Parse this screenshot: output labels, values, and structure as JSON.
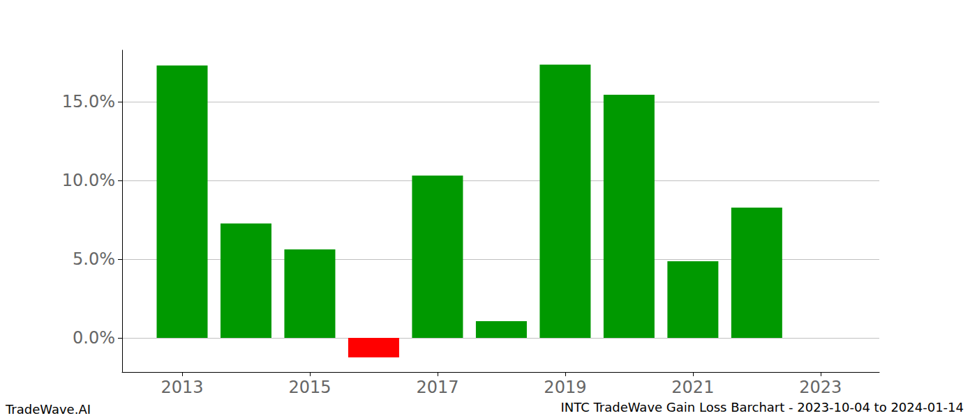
{
  "chart_data": {
    "type": "bar",
    "title": "INTC TradeWave Gain Loss Barchart - 2023-10-04 to 2024-01-14",
    "annotations": [
      "TradeWave.AI"
    ],
    "x": [
      2013,
      2014,
      2015,
      2016,
      2017,
      2018,
      2019,
      2020,
      2021,
      2022
    ],
    "values": [
      17.3,
      7.26,
      5.62,
      -1.24,
      10.31,
      1.06,
      17.35,
      15.44,
      4.87,
      8.27
    ],
    "colors": [
      "#009900",
      "#009900",
      "#009900",
      "#ff0000",
      "#009900",
      "#009900",
      "#009900",
      "#009900",
      "#009900",
      "#009900"
    ],
    "xlim": [
      2012.06,
      2023.92
    ],
    "xticks": [
      2013,
      2015,
      2017,
      2019,
      2021,
      2023
    ],
    "ylim": [
      -2.17,
      18.27
    ],
    "yticks": [
      {
        "value": 0,
        "label": "0.0%"
      },
      {
        "value": 5,
        "label": "5.0%"
      },
      {
        "value": 10,
        "label": "10.0%"
      },
      {
        "value": 15,
        "label": "15.0%"
      }
    ],
    "grid": true
  }
}
